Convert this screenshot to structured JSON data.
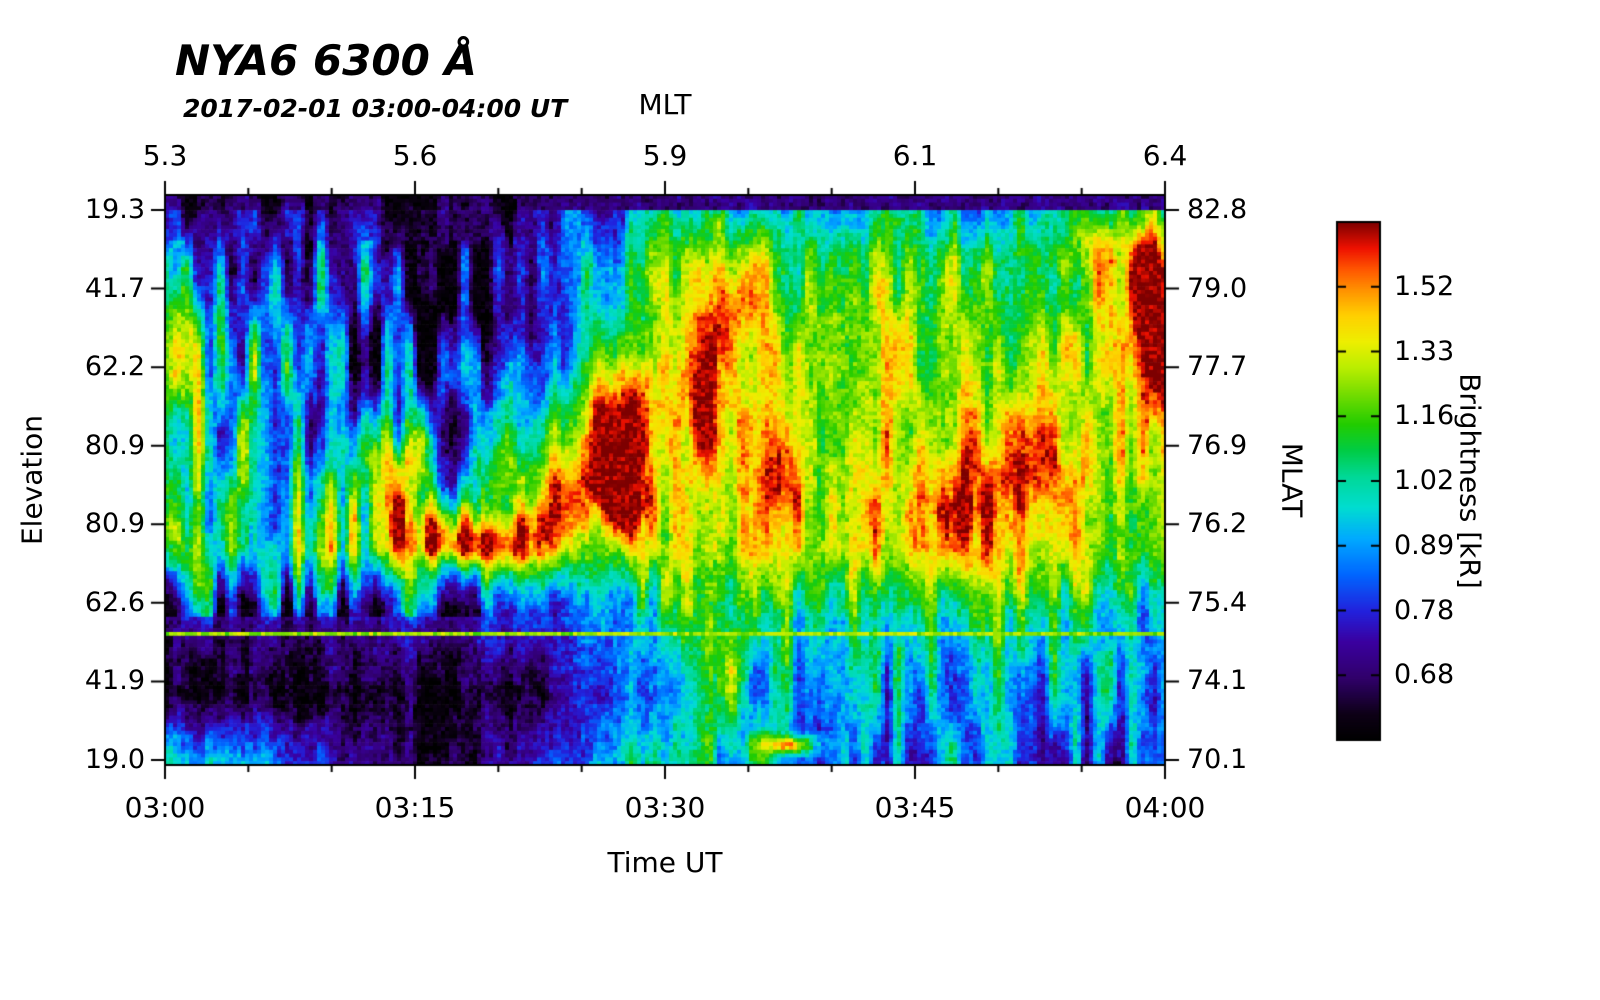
{
  "chart_data": {
    "type": "heatmap",
    "title": "NYA6 6300 Å",
    "subtitle": "2017-02-01 03:00-04:00 UT",
    "top_axis_label": "MLT",
    "top_ticks": [
      "5.3",
      "5.6",
      "5.9",
      "6.1",
      "6.4"
    ],
    "xlabel": "Time UT",
    "x_ticks": [
      "03:00",
      "03:15",
      "03:30",
      "03:45",
      "04:00"
    ],
    "left_axis_label": "Elevation",
    "left_ticks": [
      "19.3",
      "41.7",
      "62.2",
      "80.9",
      "80.9",
      "62.6",
      "41.9",
      "19.0"
    ],
    "right_axis_label": "MLAT",
    "right_ticks": [
      "82.8",
      "79.0",
      "77.7",
      "76.9",
      "76.2",
      "75.4",
      "74.1",
      "70.1"
    ],
    "colorbar": {
      "label": "Brightness [kR]",
      "tick_labels": [
        "1.52",
        "1.33",
        "1.16",
        "1.02",
        "0.89",
        "0.78",
        "0.68"
      ]
    },
    "legend_position": "right",
    "grid": false,
    "colormap_stops": [
      [
        0.0,
        "#000000"
      ],
      [
        0.05,
        "#0d0016"
      ],
      [
        0.12,
        "#30006a"
      ],
      [
        0.19,
        "#3a00a0"
      ],
      [
        0.25,
        "#2222dd"
      ],
      [
        0.32,
        "#0066ff"
      ],
      [
        0.39,
        "#00aaff"
      ],
      [
        0.45,
        "#00ddd0"
      ],
      [
        0.51,
        "#00d896"
      ],
      [
        0.56,
        "#00cc44"
      ],
      [
        0.61,
        "#22cc00"
      ],
      [
        0.67,
        "#77dd00"
      ],
      [
        0.72,
        "#bbee00"
      ],
      [
        0.77,
        "#eeee00"
      ],
      [
        0.82,
        "#ffd000"
      ],
      [
        0.87,
        "#ff9100"
      ],
      [
        0.91,
        "#ff5500"
      ],
      [
        0.95,
        "#ee1100"
      ],
      [
        1.0,
        "#7d0000"
      ]
    ],
    "field": {
      "seed": 7,
      "thin_line_v": 0.768,
      "base_grid": [
        [
          0.12,
          0.12,
          0.12,
          0.12,
          0.15,
          0.3,
          0.45,
          0.45,
          0.4,
          0.4,
          0.45,
          0.5
        ],
        [
          0.3,
          0.34,
          0.26,
          0.24,
          0.38,
          0.52,
          0.74,
          0.6,
          0.62,
          0.64,
          0.62,
          0.74
        ],
        [
          0.5,
          0.46,
          0.28,
          0.22,
          0.38,
          0.56,
          0.78,
          0.66,
          0.7,
          0.72,
          0.68,
          0.82
        ],
        [
          0.52,
          0.5,
          0.3,
          0.24,
          0.48,
          0.68,
          0.74,
          0.72,
          0.74,
          0.76,
          0.72,
          0.78
        ],
        [
          0.56,
          0.58,
          0.52,
          0.34,
          0.72,
          0.78,
          0.72,
          0.76,
          0.76,
          0.78,
          0.76,
          0.7
        ],
        [
          0.58,
          0.56,
          0.68,
          0.7,
          0.64,
          0.62,
          0.72,
          0.74,
          0.76,
          0.8,
          0.74,
          0.62
        ],
        [
          0.18,
          0.15,
          0.18,
          0.22,
          0.28,
          0.38,
          0.55,
          0.5,
          0.48,
          0.52,
          0.48,
          0.4
        ],
        [
          0.06,
          0.05,
          0.04,
          0.05,
          0.07,
          0.28,
          0.45,
          0.36,
          0.36,
          0.4,
          0.38,
          0.3
        ],
        [
          0.45,
          0.42,
          0.18,
          0.1,
          0.16,
          0.48,
          0.5,
          0.36,
          0.32,
          0.36,
          0.32,
          0.28
        ]
      ],
      "blobs": [
        [
          0.235,
          0.5,
          0.022,
          0.065,
          0.38
        ],
        [
          0.265,
          0.585,
          0.025,
          0.035,
          0.35
        ],
        [
          0.315,
          0.615,
          0.03,
          0.028,
          0.33
        ],
        [
          0.365,
          0.6,
          0.018,
          0.042,
          0.3
        ],
        [
          0.4,
          0.56,
          0.015,
          0.05,
          0.25
        ],
        [
          0.445,
          0.44,
          0.02,
          0.075,
          0.45
        ],
        [
          0.458,
          0.55,
          0.018,
          0.05,
          0.3
        ],
        [
          0.475,
          0.33,
          0.015,
          0.06,
          0.2
        ],
        [
          0.535,
          0.38,
          0.013,
          0.08,
          0.28
        ],
        [
          0.565,
          0.22,
          0.02,
          0.09,
          0.22
        ],
        [
          0.615,
          0.5,
          0.012,
          0.08,
          0.33
        ],
        [
          0.8,
          0.55,
          0.05,
          0.06,
          0.16
        ],
        [
          0.87,
          0.5,
          0.04,
          0.08,
          0.14
        ],
        [
          0.985,
          0.22,
          0.016,
          0.1,
          0.38
        ],
        [
          0.93,
          0.1,
          0.05,
          0.035,
          0.12
        ],
        [
          0.625,
          0.965,
          0.018,
          0.012,
          0.5
        ],
        [
          0.33,
          0.2,
          0.06,
          0.1,
          -0.22
        ],
        [
          0.55,
          0.83,
          0.03,
          0.1,
          0.18
        ],
        [
          0.02,
          0.6,
          0.015,
          0.06,
          0.18
        ]
      ]
    }
  }
}
